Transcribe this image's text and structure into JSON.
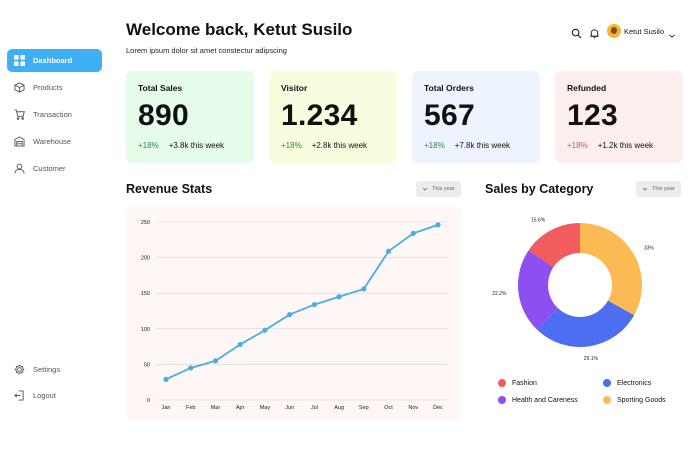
{
  "sidebar": {
    "items": [
      {
        "label": "Dashboard",
        "icon": "grid-icon",
        "active": true
      },
      {
        "label": "Products",
        "icon": "box-icon",
        "active": false
      },
      {
        "label": "Transaction",
        "icon": "cart-icon",
        "active": false
      },
      {
        "label": "Warehouse",
        "icon": "warehouse-icon",
        "active": false
      },
      {
        "label": "Customer",
        "icon": "user-icon",
        "active": false
      }
    ],
    "bottom": [
      {
        "label": "Settings",
        "icon": "gear-icon"
      },
      {
        "label": "Logout",
        "icon": "logout-icon"
      }
    ]
  },
  "header": {
    "title": "Welcome back, Ketut Susilo",
    "subtitle": "Lorem ipsum dolor sit amet constectur adipscing",
    "user_name": "Ketut Susilo"
  },
  "cards": [
    {
      "label": "Total Sales",
      "value": "890",
      "pct": "+18%",
      "trend": "up",
      "note": "+3.8k this week",
      "bg": "#e6fcea"
    },
    {
      "label": "Visitor",
      "value": "1.234",
      "pct": "+18%",
      "trend": "up",
      "note": "+2.8k this week",
      "bg": "#f8fde0"
    },
    {
      "label": "Total Orders",
      "value": "567",
      "pct": "+18%",
      "trend": "up",
      "note": "+7.8k this week",
      "bg": "#edf4fe"
    },
    {
      "label": "Refunded",
      "value": "123",
      "pct": "+18%",
      "trend": "down",
      "note": "+1.2k this week",
      "bg": "#fdeeee"
    }
  ],
  "revenue": {
    "title": "Revenue Stats",
    "filter": "This year"
  },
  "category": {
    "title": "Sales by Category",
    "filter": "This year"
  },
  "colors": {
    "accent": "#40b0f6",
    "line": "#4aaee0",
    "up": "#2d8a4b",
    "down": "#d9534f"
  },
  "chart_data": [
    {
      "type": "line",
      "categories": [
        "Jan",
        "Feb",
        "Mar",
        "Apr",
        "May",
        "Jun",
        "Jul",
        "Aug",
        "Sep",
        "Oct",
        "Nov",
        "Dec"
      ],
      "values": [
        29,
        45,
        55,
        78,
        98,
        120,
        134,
        145,
        156,
        209,
        234,
        246
      ],
      "ylim": [
        0,
        250
      ],
      "yticks": [
        0,
        50,
        100,
        150,
        200,
        250
      ],
      "grid": true,
      "xlabel": "",
      "ylabel": ""
    },
    {
      "type": "pie",
      "donut": true,
      "labels": [
        "Fashion",
        "Electronics",
        "Health and Careness",
        "Sporting Goods"
      ],
      "values": [
        15.6,
        29.1,
        22.2,
        33.1
      ],
      "value_labels": [
        "15.6%",
        "29.1%",
        "22.2%",
        "33%"
      ],
      "colors": [
        "#f25c5c",
        "#4d6ef0",
        "#8e4ff0",
        "#fcba54"
      ],
      "legend": "bottom"
    }
  ]
}
